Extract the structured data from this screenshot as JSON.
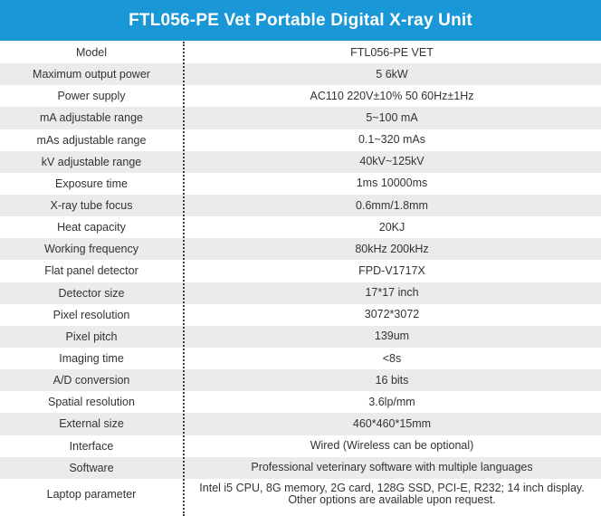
{
  "header": {
    "title": "FTL056-PE Vet Portable Digital X-ray Unit"
  },
  "colors": {
    "header_bg": "#1a97d6",
    "row_shade": "#ebebeb"
  },
  "specs": [
    {
      "label": "Model",
      "value": "FTL056-PE VET"
    },
    {
      "label": "Maximum output power",
      "value": "5 6kW"
    },
    {
      "label": "Power supply",
      "value": "AC110  220V±10%  50  60Hz±1Hz"
    },
    {
      "label": "mA adjustable range",
      "value": "5~100 mA"
    },
    {
      "label": "mAs adjustable range",
      "value": "0.1~320 mAs"
    },
    {
      "label": "kV adjustable range",
      "value": "40kV~125kV"
    },
    {
      "label": "Exposure time",
      "value": "1ms  10000ms"
    },
    {
      "label": "X-ray tube focus",
      "value": "0.6mm/1.8mm"
    },
    {
      "label": "Heat capacity",
      "value": "20KJ"
    },
    {
      "label": "Working frequency",
      "value": "80kHz  200kHz"
    },
    {
      "label": "Flat panel detector",
      "value": "FPD-V1717X"
    },
    {
      "label": "Detector size",
      "value": "17*17 inch"
    },
    {
      "label": "Pixel resolution",
      "value": "3072*3072"
    },
    {
      "label": "Pixel pitch",
      "value": "139um"
    },
    {
      "label": "Imaging time",
      "value": "<8s"
    },
    {
      "label": "A/D conversion",
      "value": "16 bits"
    },
    {
      "label": "Spatial resolution",
      "value": "3.6lp/mm"
    },
    {
      "label": "External size",
      "value": "460*460*15mm"
    },
    {
      "label": "Interface",
      "value": "Wired (Wireless can be optional)"
    },
    {
      "label": "Software",
      "value": "Professional veterinary software with multiple languages"
    },
    {
      "label": "Laptop parameter",
      "value": "Intel i5 CPU, 8G memory,  2G card,  128G SSD,  PCI-E, R232; 14 inch display. Other options are available upon request."
    }
  ]
}
